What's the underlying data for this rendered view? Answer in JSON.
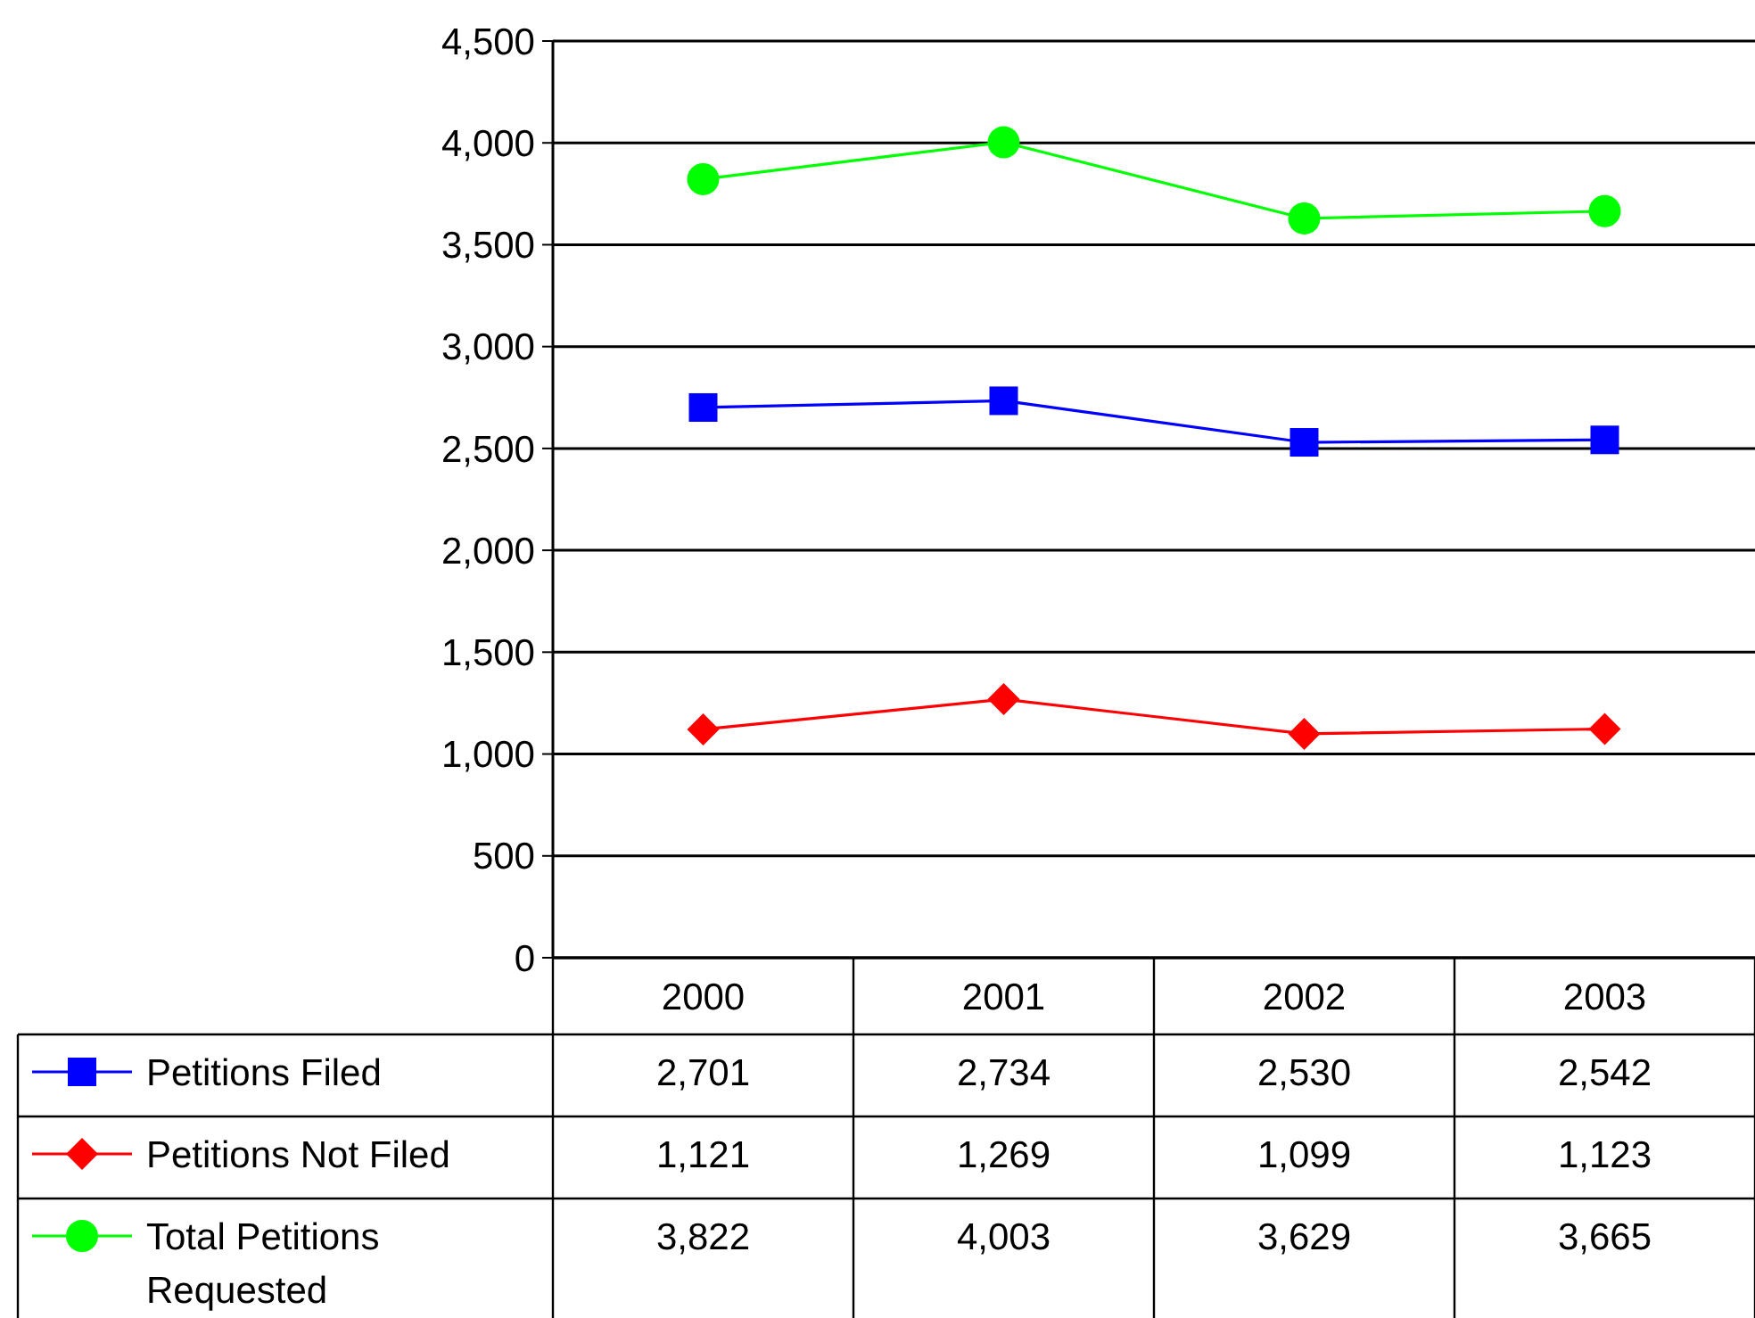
{
  "chart_data": {
    "type": "line",
    "categories": [
      "2000",
      "2001",
      "2002",
      "2003"
    ],
    "series": [
      {
        "name": "Petitions Filed",
        "color": "#0000ff",
        "marker": "square",
        "values": [
          2701,
          2734,
          2530,
          2542
        ],
        "value_labels": [
          "2,701",
          "2,734",
          "2,530",
          "2,542"
        ]
      },
      {
        "name": "Petitions Not Filed",
        "color": "#ff0000",
        "marker": "diamond",
        "values": [
          1121,
          1269,
          1099,
          1123
        ],
        "value_labels": [
          "1,121",
          "1,269",
          "1,099",
          "1,123"
        ]
      },
      {
        "name": "Total Petitions Requested",
        "color": "#00ff00",
        "marker": "circle",
        "values": [
          3822,
          4003,
          3629,
          3665
        ],
        "value_labels": [
          "3,822",
          "4,003",
          "3,629",
          "3,665"
        ]
      }
    ],
    "ylim": [
      0,
      4500
    ],
    "yticks": [
      {
        "value": 0,
        "label": "0"
      },
      {
        "value": 500,
        "label": "500"
      },
      {
        "value": 1000,
        "label": "1,000"
      },
      {
        "value": 1500,
        "label": "1,500"
      },
      {
        "value": 2000,
        "label": "2,000"
      },
      {
        "value": 2500,
        "label": "2,500"
      },
      {
        "value": 3000,
        "label": "3,000"
      },
      {
        "value": 3500,
        "label": "3,500"
      },
      {
        "value": 4000,
        "label": "4,000"
      },
      {
        "value": 4500,
        "label": "4,500"
      }
    ],
    "grid": "y",
    "legend": "bottom left",
    "line_style": "solid"
  }
}
